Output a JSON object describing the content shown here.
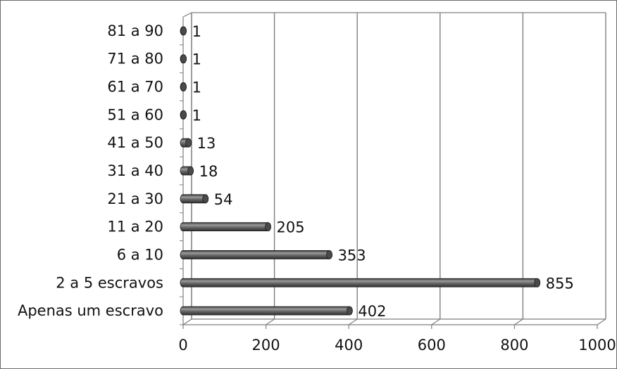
{
  "chart_data": {
    "type": "bar",
    "orientation": "horizontal",
    "style": "3d-cylinder",
    "categories": [
      "Apenas um escravo",
      "2 a 5 escravos",
      "6 a 10",
      "11 a 20",
      "21 a 30",
      "31 a 40",
      "41 a 50",
      "51 a 60",
      "61 a 70",
      "71 a 80",
      "81 a 90"
    ],
    "values": [
      402,
      855,
      353,
      205,
      54,
      18,
      13,
      1,
      1,
      1,
      1
    ],
    "data_labels": [
      "402",
      "855",
      "353",
      "205",
      "54",
      "18",
      "13",
      "1",
      "1",
      "1",
      "1"
    ],
    "title": "",
    "xlabel": "",
    "ylabel": "",
    "xlim": [
      0,
      1000
    ],
    "x_ticks": [
      "0",
      "200",
      "400",
      "600",
      "800",
      "1000"
    ],
    "grid": true,
    "legend": "none",
    "colors": {
      "bar": "#5a5a5a",
      "bar_highlight": "#9a9a9a",
      "grid": "#7f7f7f",
      "text": "#111111"
    }
  }
}
